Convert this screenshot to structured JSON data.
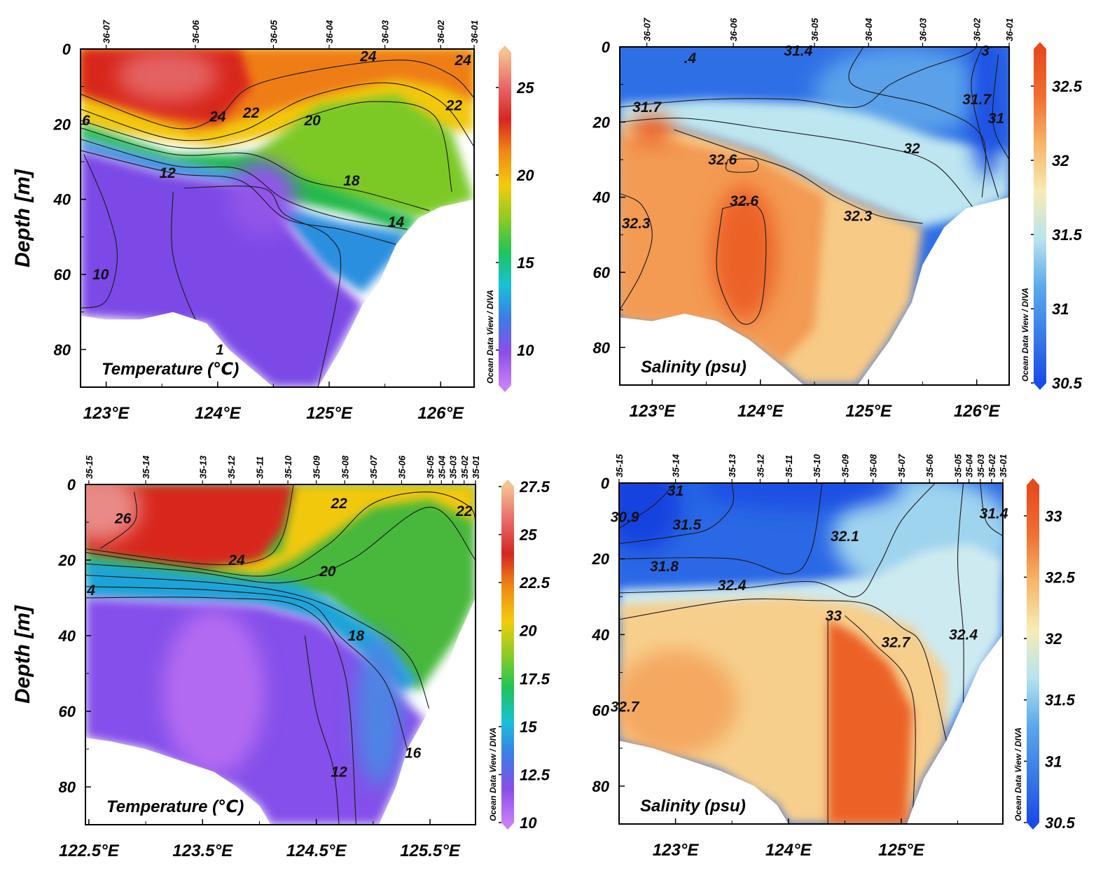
{
  "figure": {
    "ylabel": "Depth [m]",
    "watermark": "Ocean Data View / DIVA"
  },
  "chart_data": [
    {
      "id": "p1",
      "type": "heatmap",
      "title": "Temperature (℃)",
      "ylabel": "Depth [m]",
      "xlim": [
        122.77,
        126.3
      ],
      "ylim": [
        90,
        0
      ],
      "xticks": [
        "123°E",
        "124°E",
        "125°E",
        "126°E"
      ],
      "xtick_values": [
        123,
        124,
        125,
        126
      ],
      "yticks": [
        "0",
        "20",
        "40",
        "60",
        "80"
      ],
      "ytick_values": [
        0,
        20,
        40,
        60,
        80
      ],
      "stations": [
        {
          "name": "36-07",
          "lon": 123.0
        },
        {
          "name": "36-06",
          "lon": 123.8
        },
        {
          "name": "36-05",
          "lon": 124.5
        },
        {
          "name": "36-04",
          "lon": 125.0
        },
        {
          "name": "36-03",
          "lon": 125.5
        },
        {
          "name": "36-02",
          "lon": 126.0
        },
        {
          "name": "36-01",
          "lon": 126.3
        }
      ],
      "colorbar": {
        "min": 8,
        "max": 27,
        "ticks": [
          "10",
          "15",
          "20",
          "25"
        ],
        "tick_values": [
          10,
          15,
          20,
          25
        ],
        "colors": [
          "#c77df6",
          "#8a4ee8",
          "#3d7be8",
          "#19c1d6",
          "#1ec45a",
          "#8dcb24",
          "#f2cc0c",
          "#f08a12",
          "#d62623",
          "#e96a6a",
          "#f5c190"
        ]
      },
      "bottom": [
        [
          122.77,
          71
        ],
        [
          123.0,
          72
        ],
        [
          123.3,
          72
        ],
        [
          123.6,
          70
        ],
        [
          123.9,
          73
        ],
        [
          124.1,
          80
        ],
        [
          124.3,
          85
        ],
        [
          124.5,
          90
        ],
        [
          124.9,
          90
        ],
        [
          125.1,
          80
        ],
        [
          125.3,
          68
        ],
        [
          125.45,
          62
        ],
        [
          125.6,
          52
        ],
        [
          125.8,
          45
        ],
        [
          126.0,
          42
        ],
        [
          126.3,
          40
        ]
      ],
      "contour_labels": [
        {
          "text": "24",
          "lon": 124.0,
          "depth": 18
        },
        {
          "text": "22",
          "lon": 124.3,
          "depth": 17
        },
        {
          "text": "20",
          "lon": 124.85,
          "depth": 19
        },
        {
          "text": "18",
          "lon": 125.2,
          "depth": 35
        },
        {
          "text": "12",
          "lon": 123.55,
          "depth": 33
        },
        {
          "text": "10",
          "lon": 122.95,
          "depth": 60
        },
        {
          "text": "14",
          "lon": 125.6,
          "depth": 46
        },
        {
          "text": "24",
          "lon": 125.35,
          "depth": 2
        },
        {
          "text": "24",
          "lon": 126.2,
          "depth": 3
        },
        {
          "text": "22",
          "lon": 126.12,
          "depth": 15
        },
        {
          "text": "6",
          "lon": 122.82,
          "depth": 19
        },
        {
          "text": "1",
          "lon": 124.02,
          "depth": 80
        }
      ]
    },
    {
      "id": "p2",
      "type": "heatmap",
      "title": "Salinity (psu)",
      "ylabel": "",
      "xlim": [
        122.7,
        126.3
      ],
      "ylim": [
        90,
        0
      ],
      "xticks": [
        "123°E",
        "124°E",
        "125°E",
        "126°E"
      ],
      "xtick_values": [
        123,
        124,
        125,
        126
      ],
      "yticks": [
        "0",
        "20",
        "40",
        "60",
        "80"
      ],
      "ytick_values": [
        0,
        20,
        40,
        60,
        80
      ],
      "stations": [
        {
          "name": "36-07",
          "lon": 122.95
        },
        {
          "name": "36-06",
          "lon": 123.75
        },
        {
          "name": "36-05",
          "lon": 124.5
        },
        {
          "name": "36-04",
          "lon": 125.0
        },
        {
          "name": "36-03",
          "lon": 125.5
        },
        {
          "name": "36-02",
          "lon": 126.0
        },
        {
          "name": "36-01",
          "lon": 126.3
        }
      ],
      "colorbar": {
        "min": 30.5,
        "max": 32.75,
        "ticks": [
          "30.5",
          "31",
          "31.5",
          "32",
          "32.5"
        ],
        "tick_values": [
          30.5,
          31,
          31.5,
          32,
          32.5
        ],
        "colors": [
          "#1a4ae8",
          "#3a7be6",
          "#5aa8ea",
          "#b7e3ef",
          "#f7ecb6",
          "#f6b66b",
          "#ef6f30",
          "#e6491f"
        ]
      },
      "bottom": [
        [
          122.7,
          72
        ],
        [
          123.0,
          73
        ],
        [
          123.3,
          71
        ],
        [
          123.6,
          73
        ],
        [
          123.9,
          78
        ],
        [
          124.2,
          85
        ],
        [
          124.4,
          90
        ],
        [
          124.9,
          90
        ],
        [
          125.2,
          78
        ],
        [
          125.4,
          68
        ],
        [
          125.5,
          58
        ],
        [
          125.7,
          48
        ],
        [
          125.9,
          43
        ],
        [
          126.3,
          40
        ]
      ],
      "contour_labels": [
        {
          "text": "31.4",
          "lon": 124.35,
          "depth": 1
        },
        {
          "text": "31.7",
          "lon": 122.95,
          "depth": 16
        },
        {
          "text": "32",
          "lon": 125.4,
          "depth": 27
        },
        {
          "text": "32.6",
          "lon": 123.65,
          "depth": 30
        },
        {
          "text": "32.6",
          "lon": 123.85,
          "depth": 41
        },
        {
          "text": "32.3",
          "lon": 124.9,
          "depth": 45
        },
        {
          "text": "32.3",
          "lon": 122.85,
          "depth": 47
        },
        {
          "text": "31.7",
          "lon": 126.0,
          "depth": 14
        },
        {
          "text": ".4",
          "lon": 123.35,
          "depth": 3
        },
        {
          "text": "31",
          "lon": 126.18,
          "depth": 19
        },
        {
          "text": "3",
          "lon": 126.08,
          "depth": 1
        }
      ]
    },
    {
      "id": "p3",
      "type": "heatmap",
      "title": "Temperature (℃)",
      "ylabel": "Depth [m]",
      "xlim": [
        122.47,
        125.9
      ],
      "ylim": [
        90,
        0
      ],
      "xticks": [
        "122.5°E",
        "123.5°E",
        "124.5°E",
        "125.5°E"
      ],
      "xtick_values": [
        122.5,
        123.5,
        124.5,
        125.5
      ],
      "yticks": [
        "0",
        "20",
        "40",
        "60",
        "80"
      ],
      "ytick_values": [
        0,
        20,
        40,
        60,
        80
      ],
      "stations": [
        {
          "name": "35-15",
          "lon": 122.5
        },
        {
          "name": "35-14",
          "lon": 123.0
        },
        {
          "name": "35-13",
          "lon": 123.5
        },
        {
          "name": "35-12",
          "lon": 123.75
        },
        {
          "name": "35-11",
          "lon": 124.0
        },
        {
          "name": "35-10",
          "lon": 124.25
        },
        {
          "name": "35-09",
          "lon": 124.5
        },
        {
          "name": "35-08",
          "lon": 124.75
        },
        {
          "name": "35-07",
          "lon": 125.0
        },
        {
          "name": "35-06",
          "lon": 125.25
        },
        {
          "name": "35-05",
          "lon": 125.5
        },
        {
          "name": "35-04",
          "lon": 125.6
        },
        {
          "name": "35-03",
          "lon": 125.7
        },
        {
          "name": "35-02",
          "lon": 125.8
        },
        {
          "name": "35-01",
          "lon": 125.9
        }
      ],
      "colorbar": {
        "min": 10,
        "max": 27.5,
        "ticks": [
          "10",
          "12.5",
          "15",
          "17.5",
          "20",
          "22.5",
          "25",
          "27.5"
        ],
        "tick_values": [
          10,
          12.5,
          15,
          17.5,
          20,
          22.5,
          25,
          27.5
        ],
        "colors": [
          "#c77df6",
          "#8a4ee8",
          "#3d7be8",
          "#19c1d6",
          "#1ec45a",
          "#8dcb24",
          "#f2cc0c",
          "#f08a12",
          "#d62623",
          "#e96a6a",
          "#f5c190"
        ]
      },
      "bottom": [
        [
          122.47,
          67
        ],
        [
          122.7,
          68
        ],
        [
          123.0,
          70
        ],
        [
          123.3,
          73
        ],
        [
          123.6,
          76
        ],
        [
          123.8,
          80
        ],
        [
          124.0,
          85
        ],
        [
          124.1,
          90
        ],
        [
          125.05,
          90
        ],
        [
          125.2,
          80
        ],
        [
          125.3,
          70
        ],
        [
          125.45,
          62
        ],
        [
          125.6,
          52
        ],
        [
          125.75,
          40
        ],
        [
          125.9,
          30
        ]
      ],
      "contour_labels": [
        {
          "text": "26",
          "lon": 122.8,
          "depth": 9
        },
        {
          "text": "24",
          "lon": 123.8,
          "depth": 20
        },
        {
          "text": "22",
          "lon": 124.7,
          "depth": 5
        },
        {
          "text": "22",
          "lon": 125.8,
          "depth": 7
        },
        {
          "text": "20",
          "lon": 124.6,
          "depth": 23
        },
        {
          "text": "18",
          "lon": 124.85,
          "depth": 40
        },
        {
          "text": "4",
          "lon": 122.52,
          "depth": 28
        },
        {
          "text": "12",
          "lon": 124.7,
          "depth": 76
        },
        {
          "text": "16",
          "lon": 125.35,
          "depth": 71
        }
      ]
    },
    {
      "id": "p4",
      "type": "heatmap",
      "title": "Salinity (psu)",
      "ylabel": "",
      "xlim": [
        122.5,
        125.9
      ],
      "ylim": [
        90,
        0
      ],
      "xticks": [
        "123°E",
        "124°E",
        "125°E"
      ],
      "xtick_values": [
        123,
        124,
        125
      ],
      "yticks": [
        "0",
        "20",
        "40",
        "60",
        "80"
      ],
      "ytick_values": [
        0,
        20,
        40,
        60,
        80
      ],
      "stations": [
        {
          "name": "35-15",
          "lon": 122.5
        },
        {
          "name": "35-14",
          "lon": 123.0
        },
        {
          "name": "35-13",
          "lon": 123.5
        },
        {
          "name": "35-12",
          "lon": 123.75
        },
        {
          "name": "35-11",
          "lon": 124.0
        },
        {
          "name": "35-10",
          "lon": 124.25
        },
        {
          "name": "35-09",
          "lon": 124.5
        },
        {
          "name": "35-08",
          "lon": 124.75
        },
        {
          "name": "35-07",
          "lon": 125.0
        },
        {
          "name": "35-06",
          "lon": 125.25
        },
        {
          "name": "35-05",
          "lon": 125.5
        },
        {
          "name": "35-04",
          "lon": 125.6
        },
        {
          "name": "35-03",
          "lon": 125.7
        },
        {
          "name": "35-02",
          "lon": 125.8
        },
        {
          "name": "35-01",
          "lon": 125.9
        }
      ],
      "colorbar": {
        "min": 30.5,
        "max": 33.25,
        "ticks": [
          "30.5",
          "31",
          "31.5",
          "32",
          "32.5",
          "33"
        ],
        "tick_values": [
          30.5,
          31,
          31.5,
          32,
          32.5,
          33
        ],
        "colors": [
          "#1a4ae8",
          "#3a7be6",
          "#5aa8ea",
          "#b7e3ef",
          "#f7ecb6",
          "#f6b66b",
          "#ef6f30",
          "#e6491f"
        ]
      },
      "bottom": [
        [
          122.5,
          68
        ],
        [
          122.8,
          70
        ],
        [
          123.1,
          73
        ],
        [
          123.4,
          76
        ],
        [
          123.7,
          80
        ],
        [
          123.9,
          85
        ],
        [
          124.0,
          90
        ],
        [
          125.05,
          90
        ],
        [
          125.2,
          78
        ],
        [
          125.4,
          68
        ],
        [
          125.55,
          58
        ],
        [
          125.7,
          48
        ],
        [
          125.9,
          40
        ]
      ],
      "contour_labels": [
        {
          "text": "30.9",
          "lon": 122.55,
          "depth": 9
        },
        {
          "text": "31",
          "lon": 123.0,
          "depth": 2
        },
        {
          "text": "31.5",
          "lon": 123.1,
          "depth": 11
        },
        {
          "text": "31.8",
          "lon": 122.9,
          "depth": 22
        },
        {
          "text": "32.4",
          "lon": 123.5,
          "depth": 27
        },
        {
          "text": "32.1",
          "lon": 124.5,
          "depth": 14
        },
        {
          "text": "33",
          "lon": 124.4,
          "depth": 35
        },
        {
          "text": "32.7",
          "lon": 124.95,
          "depth": 42
        },
        {
          "text": "32.4",
          "lon": 125.55,
          "depth": 40
        },
        {
          "text": "32.7",
          "lon": 122.55,
          "depth": 59
        },
        {
          "text": "31.4",
          "lon": 125.82,
          "depth": 8
        }
      ]
    }
  ]
}
